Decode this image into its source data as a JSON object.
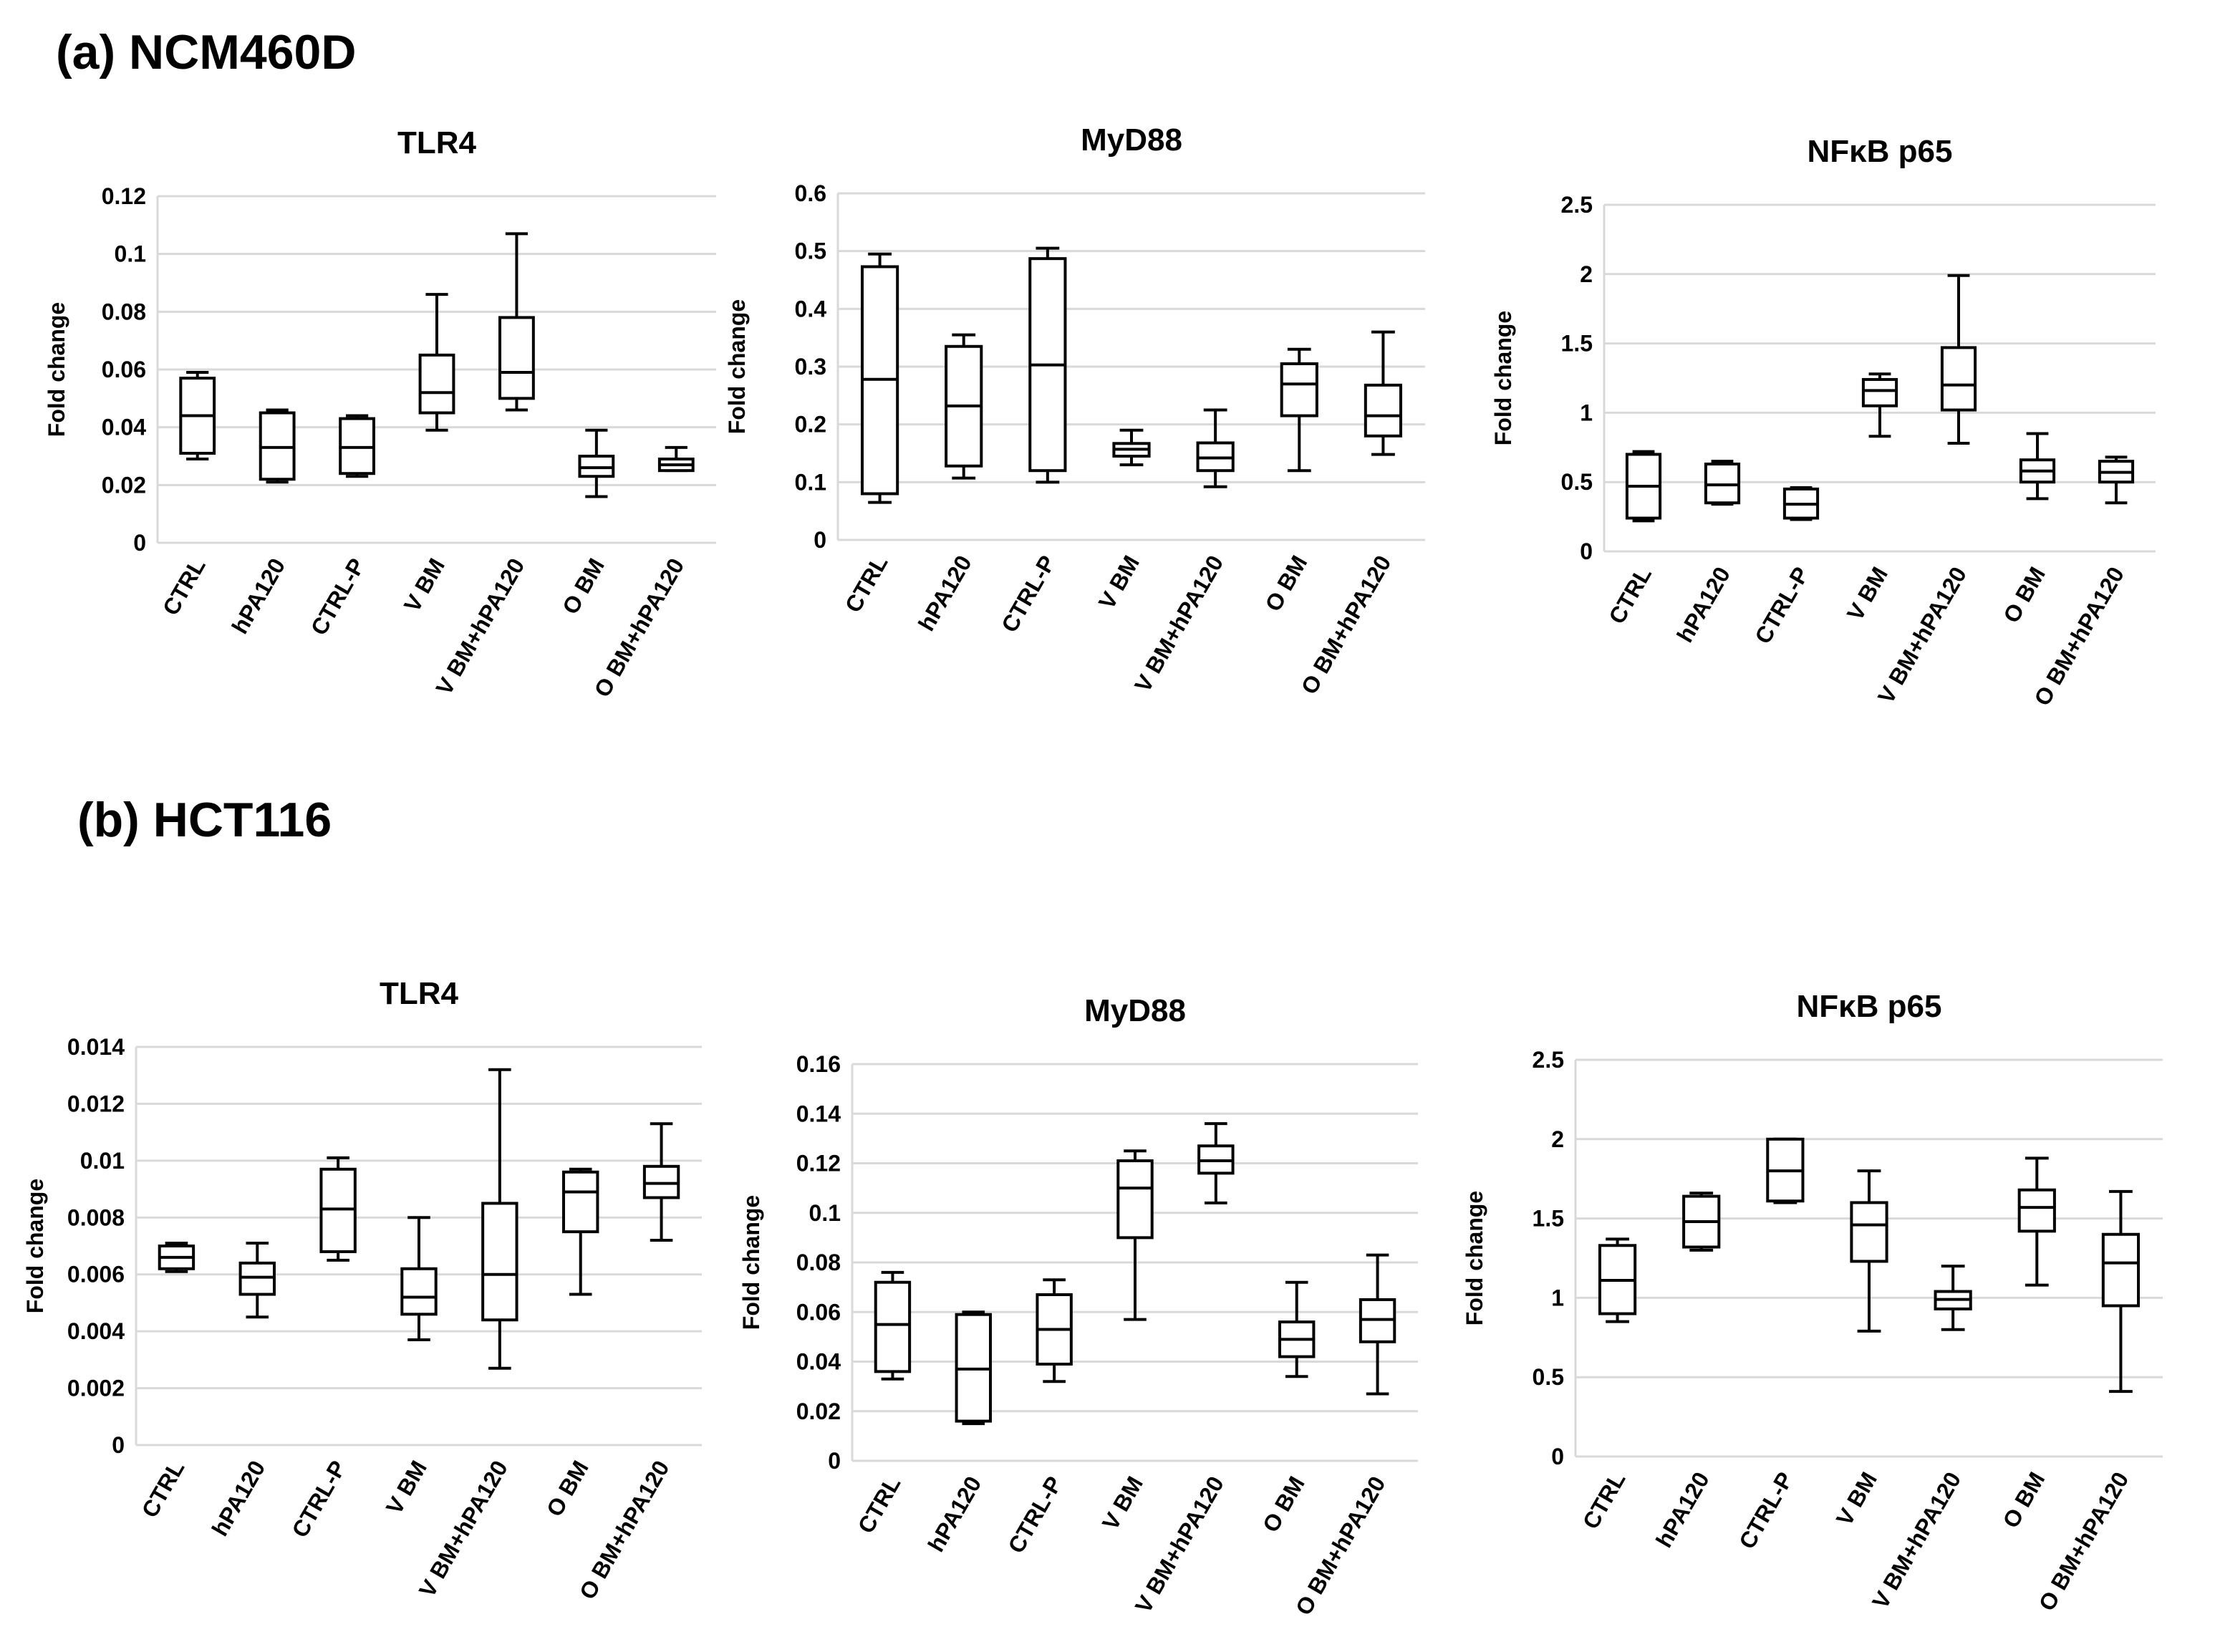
{
  "sections": [
    "(a) NCM460D",
    "(b) HCT116"
  ],
  "chart_data": [
    {
      "type": "box",
      "title": "TLR4",
      "y_label": "Fold change",
      "categories": [
        "CTRL",
        "hPA120",
        "CTRL-P",
        "V BM",
        "V BM+hPA120",
        "O BM",
        "O BM+hPA120"
      ],
      "min": [
        0.029,
        0.021,
        0.023,
        0.039,
        0.046,
        0.016,
        0.025
      ],
      "q1": [
        0.031,
        0.022,
        0.024,
        0.045,
        0.05,
        0.023,
        0.025
      ],
      "median": [
        0.044,
        0.033,
        0.033,
        0.052,
        0.059,
        0.026,
        0.027
      ],
      "q3": [
        0.057,
        0.045,
        0.043,
        0.065,
        0.078,
        0.03,
        0.029
      ],
      "max": [
        0.059,
        0.046,
        0.044,
        0.086,
        0.107,
        0.039,
        0.033
      ],
      "ylim": [
        0,
        0.12
      ],
      "yticks": [
        0,
        0.02,
        0.04,
        0.06,
        0.08,
        0.1,
        0.12
      ],
      "grid": true,
      "color": "#000000"
    },
    {
      "type": "box",
      "title": "MyD88",
      "y_label": "Fold change",
      "categories": [
        "CTRL",
        "hPA120",
        "CTRL-P",
        "V BM",
        "V BM+hPA120",
        "O BM",
        "O BM+hPA120"
      ],
      "min": [
        0.065,
        0.107,
        0.1,
        0.13,
        0.092,
        0.12,
        0.148
      ],
      "q1": [
        0.08,
        0.128,
        0.12,
        0.145,
        0.12,
        0.215,
        0.18
      ],
      "median": [
        0.278,
        0.232,
        0.303,
        0.157,
        0.142,
        0.27,
        0.215
      ],
      "q3": [
        0.473,
        0.335,
        0.487,
        0.167,
        0.168,
        0.305,
        0.268
      ],
      "max": [
        0.495,
        0.355,
        0.505,
        0.19,
        0.225,
        0.33,
        0.36
      ],
      "ylim": [
        0,
        0.6
      ],
      "yticks": [
        0,
        0.1,
        0.2,
        0.3,
        0.4,
        0.5,
        0.6
      ],
      "grid": true,
      "color": "#000000"
    },
    {
      "type": "box",
      "title": "NFκB p65",
      "y_label": "Fold change",
      "categories": [
        "CTRL",
        "hPA120",
        "CTRL-P",
        "V BM",
        "V BM+hPA120",
        "O BM",
        "O BM+hPA120"
      ],
      "min": [
        0.22,
        0.34,
        0.23,
        0.83,
        0.78,
        0.38,
        0.35
      ],
      "q1": [
        0.24,
        0.35,
        0.24,
        1.05,
        1.02,
        0.5,
        0.5
      ],
      "median": [
        0.47,
        0.48,
        0.34,
        1.16,
        1.2,
        0.58,
        0.57
      ],
      "q3": [
        0.7,
        0.63,
        0.45,
        1.24,
        1.47,
        0.66,
        0.65
      ],
      "max": [
        0.72,
        0.65,
        0.46,
        1.28,
        1.99,
        0.85,
        0.68
      ],
      "ylim": [
        0,
        2.5
      ],
      "yticks": [
        0,
        0.5,
        1,
        1.5,
        2,
        2.5
      ],
      "grid": true,
      "color": "#000000"
    },
    {
      "type": "box",
      "title": "TLR4",
      "y_label": "Fold change",
      "categories": [
        "CTRL",
        "hPA120",
        "CTRL-P",
        "V BM",
        "V BM+hPA120",
        "O BM",
        "O BM+hPA120"
      ],
      "min": [
        0.0061,
        0.0045,
        0.0065,
        0.0037,
        0.0027,
        0.0053,
        0.0072
      ],
      "q1": [
        0.0062,
        0.0053,
        0.0068,
        0.0046,
        0.0044,
        0.0075,
        0.0087
      ],
      "median": [
        0.0066,
        0.0059,
        0.0083,
        0.0052,
        0.006,
        0.0089,
        0.0092
      ],
      "q3": [
        0.007,
        0.0064,
        0.0097,
        0.0062,
        0.0085,
        0.0096,
        0.0098
      ],
      "max": [
        0.0071,
        0.0071,
        0.0101,
        0.008,
        0.0132,
        0.0097,
        0.0113
      ],
      "ylim": [
        0,
        0.014
      ],
      "yticks": [
        0,
        0.002,
        0.004,
        0.006,
        0.008,
        0.01,
        0.012,
        0.014
      ],
      "grid": true,
      "color": "#000000"
    },
    {
      "type": "box",
      "title": "MyD88",
      "y_label": "Fold change",
      "categories": [
        "CTRL",
        "hPA120",
        "CTRL-P",
        "V BM",
        "V BM+hPA120",
        "O BM",
        "O BM+hPA120"
      ],
      "min": [
        0.033,
        0.015,
        0.032,
        0.057,
        0.104,
        0.034,
        0.027
      ],
      "q1": [
        0.036,
        0.016,
        0.039,
        0.09,
        0.116,
        0.042,
        0.048
      ],
      "median": [
        0.055,
        0.037,
        0.053,
        0.11,
        0.121,
        0.049,
        0.057
      ],
      "q3": [
        0.072,
        0.059,
        0.067,
        0.121,
        0.127,
        0.056,
        0.065
      ],
      "max": [
        0.076,
        0.06,
        0.073,
        0.125,
        0.136,
        0.072,
        0.083
      ],
      "ylim": [
        0,
        0.16
      ],
      "yticks": [
        0,
        0.02,
        0.04,
        0.06,
        0.08,
        0.1,
        0.12,
        0.14,
        0.16
      ],
      "grid": true,
      "color": "#000000"
    },
    {
      "type": "box",
      "title": "NFκB p65",
      "y_label": "Fold change",
      "categories": [
        "CTRL",
        "hPA120",
        "CTRL-P",
        "V BM",
        "V BM+hPA120",
        "O BM",
        "O BM+hPA120"
      ],
      "min": [
        0.85,
        1.3,
        1.6,
        0.79,
        0.8,
        1.08,
        0.41
      ],
      "q1": [
        0.9,
        1.32,
        1.61,
        1.23,
        0.93,
        1.42,
        0.95
      ],
      "median": [
        1.11,
        1.48,
        1.8,
        1.46,
        0.99,
        1.57,
        1.22
      ],
      "q3": [
        1.33,
        1.64,
        2.0,
        1.6,
        1.04,
        1.68,
        1.4
      ],
      "max": [
        1.37,
        1.66,
        2.0,
        1.8,
        1.2,
        1.88,
        1.67
      ],
      "ylim": [
        0,
        2.5
      ],
      "yticks": [
        0,
        0.5,
        1,
        1.5,
        2,
        2.5
      ],
      "grid": true,
      "color": "#000000"
    }
  ]
}
